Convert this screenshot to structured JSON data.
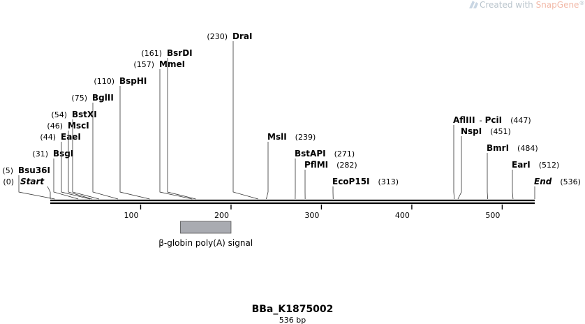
{
  "watermark": {
    "prefix": "Created with ",
    "brand": "SnapGene",
    "mark": "®"
  },
  "sequence": {
    "name": "BBa_K1875002",
    "length_label": "536 bp",
    "length": 536
  },
  "axis": {
    "ticks": [
      100,
      200,
      300,
      400,
      500
    ]
  },
  "features": [
    {
      "label": "β-globin poly(A) signal",
      "start": 144,
      "end": 200,
      "color": "#a9abb1"
    }
  ],
  "sites": [
    {
      "name": "Start",
      "pos_label": "(0)",
      "pos": 0,
      "italic": true
    },
    {
      "name": "Bsu36I",
      "pos_label": "(5)",
      "pos": 5
    },
    {
      "name": "BsgI",
      "pos_label": "(31)",
      "pos": 31
    },
    {
      "name": "EaeI",
      "pos_label": "(44)",
      "pos": 44
    },
    {
      "name": "MscI",
      "pos_label": "(46)",
      "pos": 46
    },
    {
      "name": "BstXI",
      "pos_label": "(54)",
      "pos": 54
    },
    {
      "name": "BglII",
      "pos_label": "(75)",
      "pos": 75
    },
    {
      "name": "BspHI",
      "pos_label": "(110)",
      "pos": 110
    },
    {
      "name": "MmeI",
      "pos_label": "(157)",
      "pos": 157
    },
    {
      "name": "BsrDI",
      "pos_label": "(161)",
      "pos": 161
    },
    {
      "name": "DraI",
      "pos_label": "(230)",
      "pos": 230
    },
    {
      "name": "MslI",
      "pos_label": "(239)",
      "pos": 239
    },
    {
      "name": "BstAPI",
      "pos_label": "(271)",
      "pos": 271
    },
    {
      "name": "PflMI",
      "pos_label": "(282)",
      "pos": 282
    },
    {
      "name": "EcoP15I",
      "pos_label": "(313)",
      "pos": 313
    },
    {
      "name": "AflIII",
      "joiner": " - ",
      "name2": "PciI",
      "pos_label": "(447)",
      "pos": 447
    },
    {
      "name": "NspI",
      "pos_label": "(451)",
      "pos": 451
    },
    {
      "name": "BmrI",
      "pos_label": "(484)",
      "pos": 484
    },
    {
      "name": "EarI",
      "pos_label": "(512)",
      "pos": 512
    },
    {
      "name": "End",
      "pos_label": "(536)",
      "pos": 536,
      "italic": true
    }
  ]
}
